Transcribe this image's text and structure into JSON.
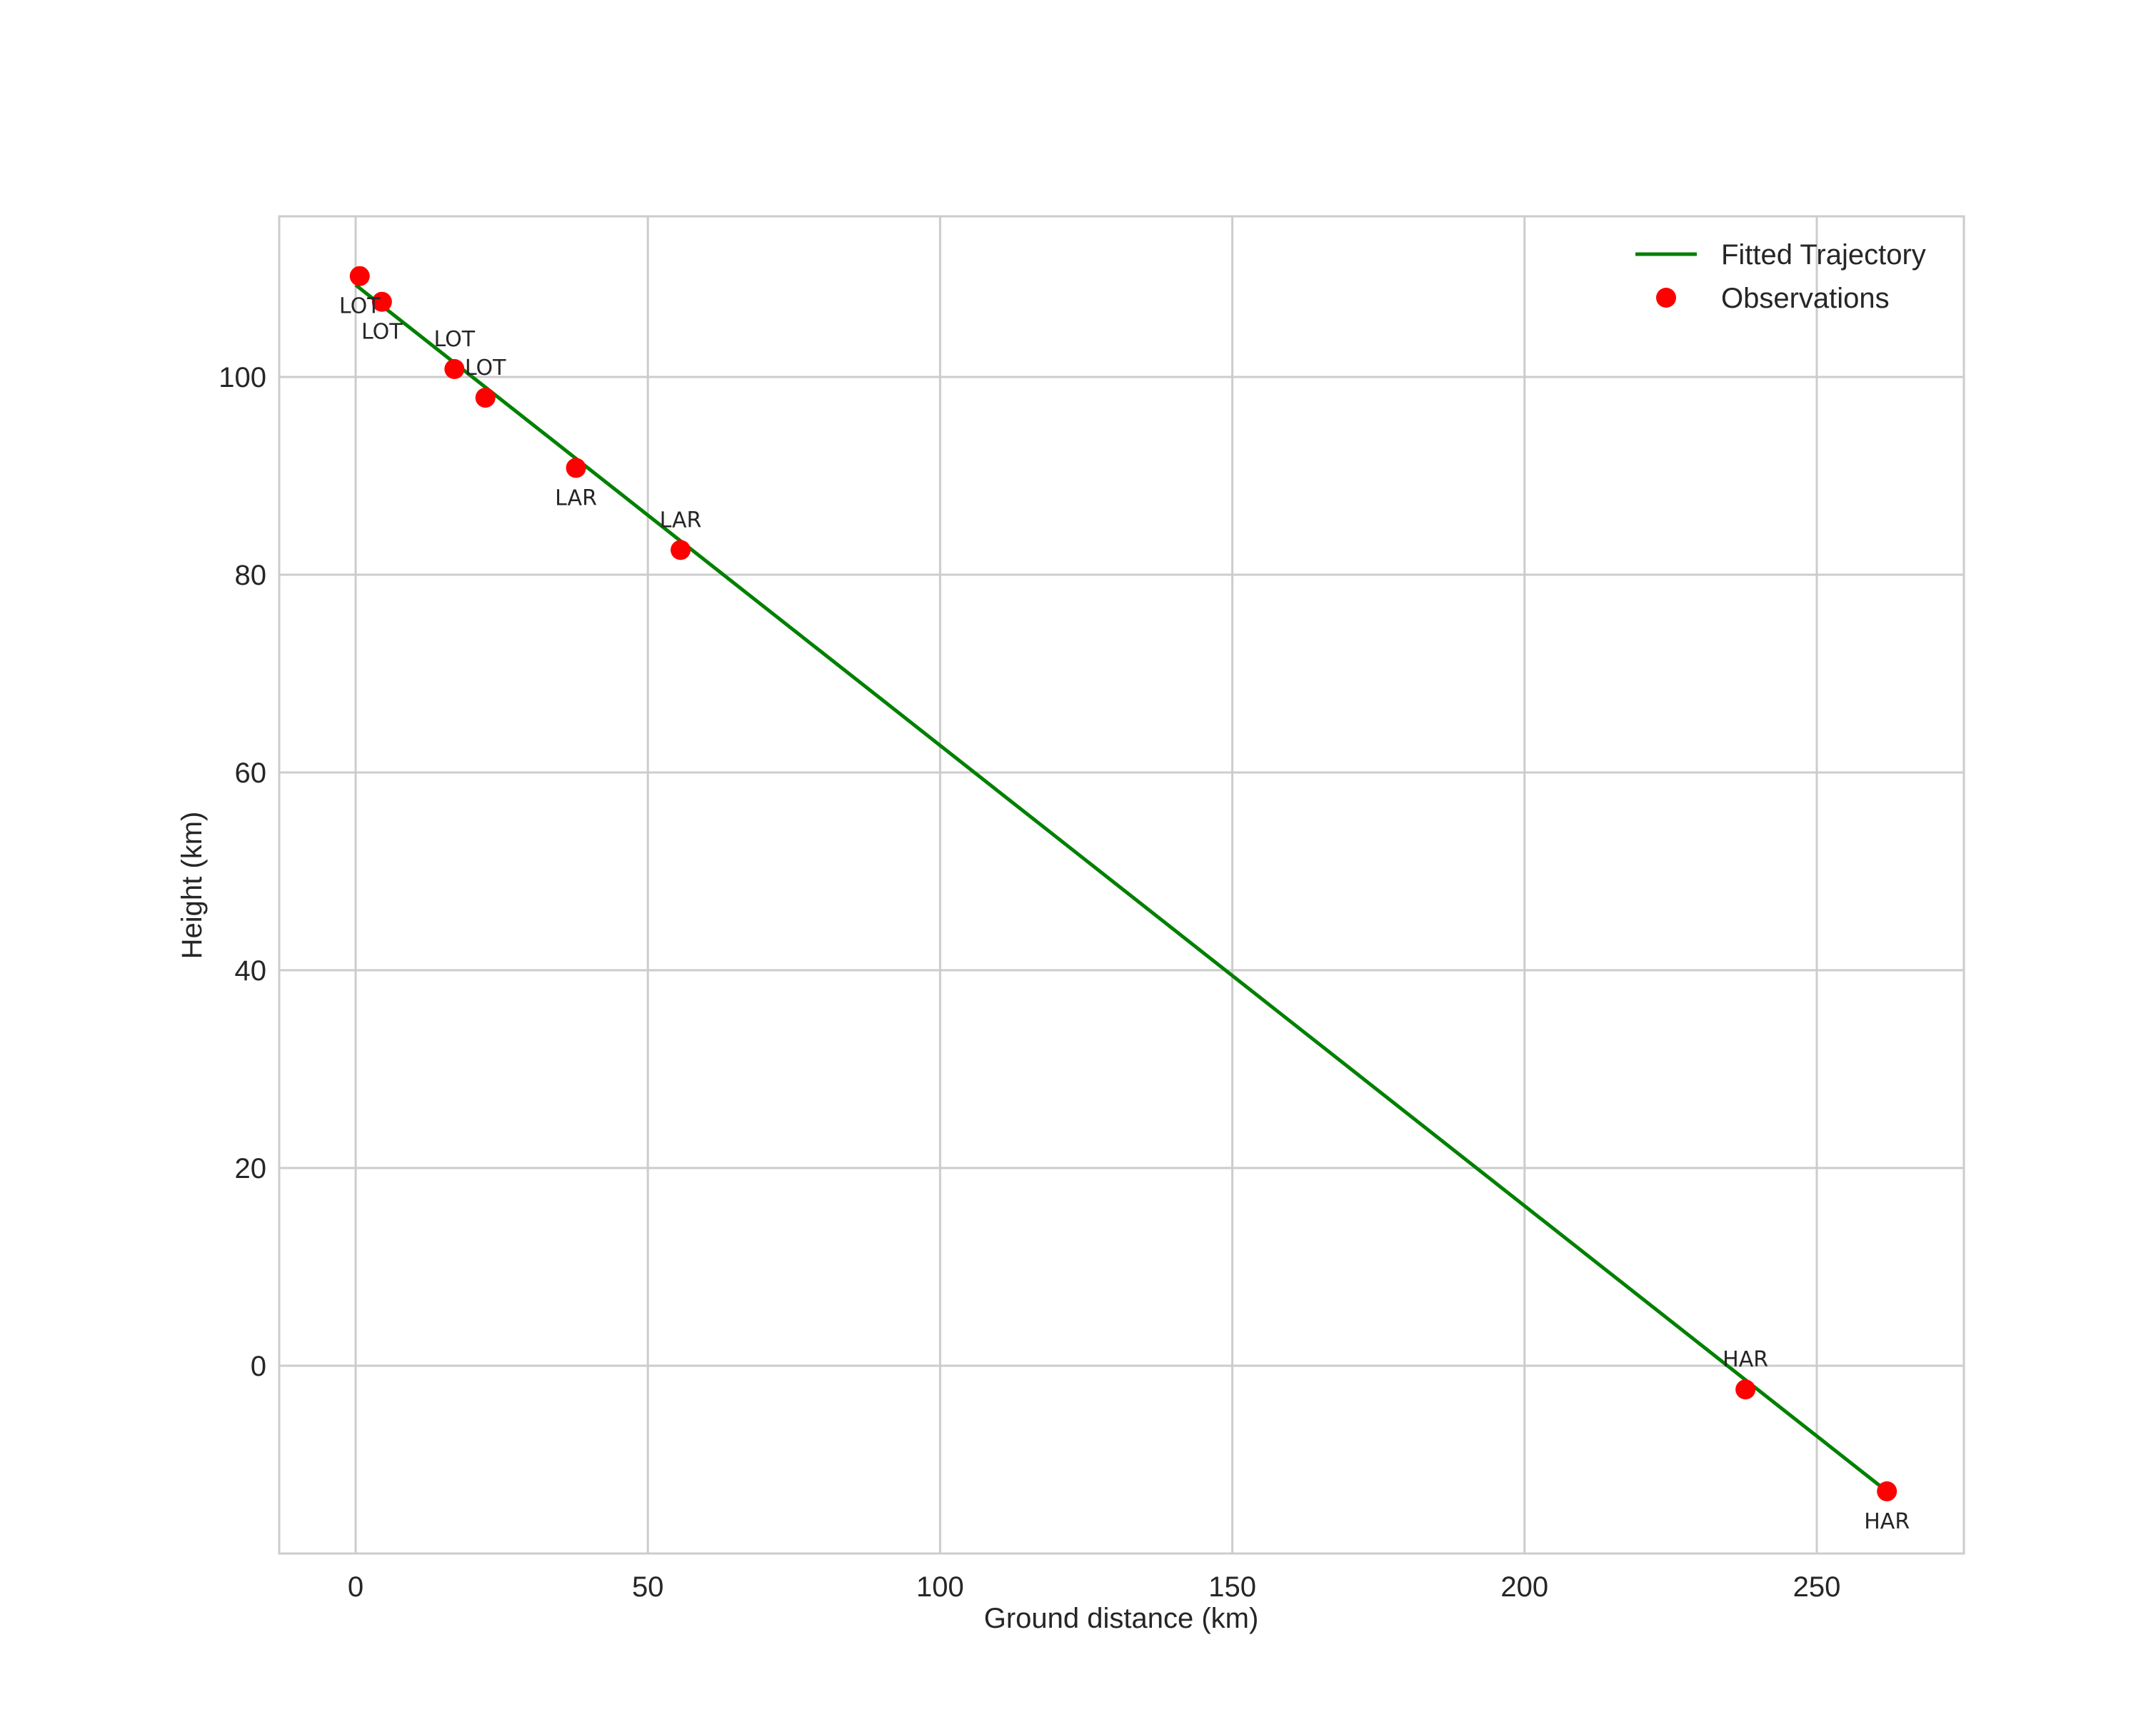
{
  "colors": {
    "line": "#008000",
    "marker": "#ff0000",
    "grid": "#cccccc",
    "text": "#262626"
  },
  "chart_data": {
    "type": "line",
    "title": "",
    "xlabel": "Ground distance (km)",
    "ylabel": "Height (km)",
    "xlim": [
      -13,
      275
    ],
    "ylim": [
      -19,
      117
    ],
    "xticks": [
      0,
      50,
      100,
      150,
      200,
      250
    ],
    "yticks": [
      0,
      20,
      40,
      60,
      80,
      100
    ],
    "grid": true,
    "legend_position": "upper right",
    "legend": [
      "Fitted Trajectory",
      "Observations"
    ],
    "series": [
      {
        "name": "Fitted Trajectory",
        "type": "line",
        "x": [
          0.0,
          262.0
        ],
        "y": [
          109.3,
          -12.7
        ]
      },
      {
        "name": "Observations",
        "type": "scatter",
        "points": [
          {
            "x": 0.7,
            "y": 110.2,
            "label": "LOT"
          },
          {
            "x": 4.5,
            "y": 107.6,
            "label": "LOT"
          },
          {
            "x": 16.9,
            "y": 100.8,
            "label": "LOT"
          },
          {
            "x": 22.2,
            "y": 97.9,
            "label": "LOT"
          },
          {
            "x": 37.7,
            "y": 90.8,
            "label": "LAR"
          },
          {
            "x": 55.6,
            "y": 82.5,
            "label": "LAR"
          },
          {
            "x": 237.8,
            "y": -2.4,
            "label": "HAR"
          },
          {
            "x": 262.0,
            "y": -12.7,
            "label": "HAR"
          }
        ]
      }
    ],
    "annotations": [
      {
        "text": "LOT",
        "x": 0.7,
        "y": 110.2,
        "position": "below"
      },
      {
        "text": "LOT",
        "x": 4.5,
        "y": 107.6,
        "position": "below"
      },
      {
        "text": "LOT",
        "x": 16.9,
        "y": 100.8,
        "position": "above"
      },
      {
        "text": "LOT",
        "x": 22.2,
        "y": 97.9,
        "position": "above"
      },
      {
        "text": "LAR",
        "x": 37.7,
        "y": 90.8,
        "position": "below"
      },
      {
        "text": "LAR",
        "x": 55.6,
        "y": 82.5,
        "position": "above"
      },
      {
        "text": "HAR",
        "x": 237.8,
        "y": -2.4,
        "position": "above"
      },
      {
        "text": "HAR",
        "x": 262.0,
        "y": -12.7,
        "position": "below"
      }
    ]
  }
}
